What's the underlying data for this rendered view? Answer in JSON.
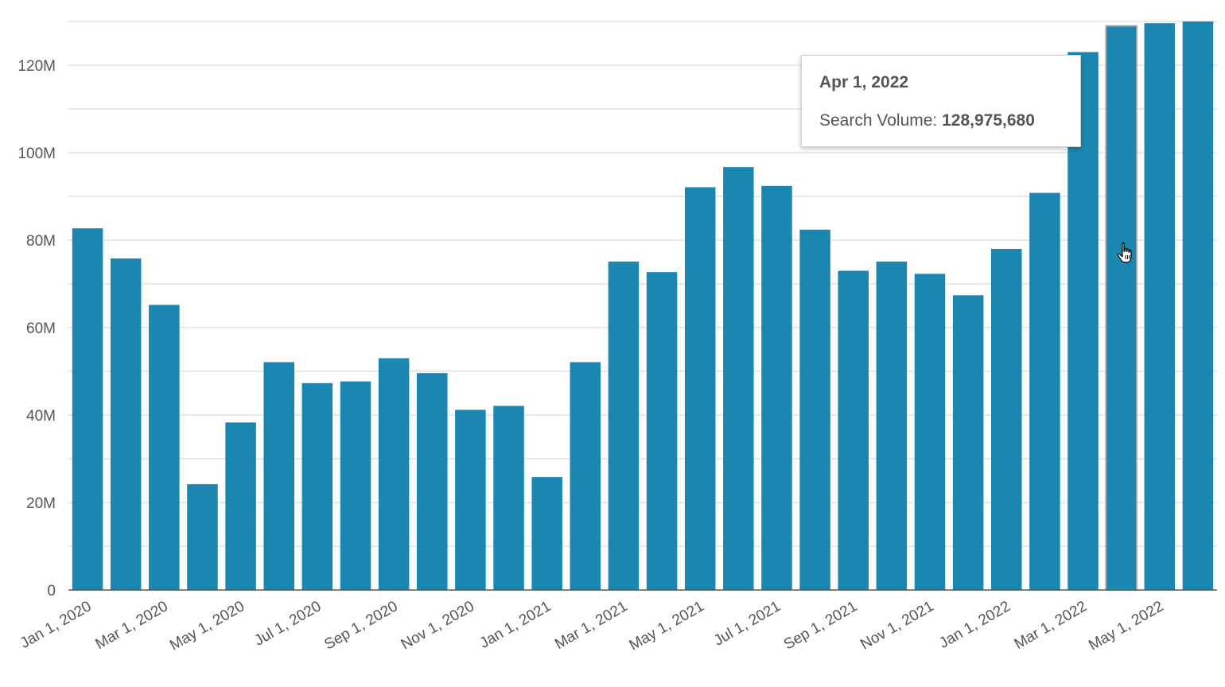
{
  "chart_data": {
    "type": "bar",
    "categories": [
      "Jan 1, 2020",
      "Feb 1, 2020",
      "Mar 1, 2020",
      "Apr 1, 2020",
      "May 1, 2020",
      "Jun 1, 2020",
      "Jul 1, 2020",
      "Aug 1, 2020",
      "Sep 1, 2020",
      "Oct 1, 2020",
      "Nov 1, 2020",
      "Dec 1, 2020",
      "Jan 1, 2021",
      "Feb 1, 2021",
      "Mar 1, 2021",
      "Apr 1, 2021",
      "May 1, 2021",
      "Jun 1, 2021",
      "Jul 1, 2021",
      "Aug 1, 2021",
      "Sep 1, 2021",
      "Oct 1, 2021",
      "Nov 1, 2021",
      "Dec 1, 2021",
      "Jan 1, 2022",
      "Feb 1, 2022",
      "Mar 1, 2022",
      "Apr 1, 2022",
      "May 1, 2022",
      "Jun 1, 2022"
    ],
    "series": [
      {
        "name": "Search Volume",
        "values": [
          82700000,
          75800000,
          65200000,
          24200000,
          38300000,
          52100000,
          47300000,
          47700000,
          53000000,
          49600000,
          41200000,
          42100000,
          25800000,
          52100000,
          75100000,
          72700000,
          92100000,
          96700000,
          92400000,
          82400000,
          73000000,
          75100000,
          72300000,
          67400000,
          78000000,
          90800000,
          123000000,
          128975680,
          129600000,
          130000000
        ]
      }
    ],
    "x_tick_labels": [
      "Jan 1, 2020",
      "Mar 1, 2020",
      "May 1, 2020",
      "Jul 1, 2020",
      "Sep 1, 2020",
      "Nov 1, 2020",
      "Jan 1, 2021",
      "Mar 1, 2021",
      "May 1, 2021",
      "Jul 1, 2021",
      "Sep 1, 2021",
      "Nov 1, 2021",
      "Jan 1, 2022",
      "Mar 1, 2022",
      "May 1, 2022"
    ],
    "y_ticks": [
      0,
      20000000,
      40000000,
      60000000,
      80000000,
      100000000,
      120000000
    ],
    "y_tick_labels": [
      "0",
      "20M",
      "40M",
      "60M",
      "80M",
      "100M",
      "120M"
    ],
    "ylim": [
      0,
      130000000
    ],
    "title": "",
    "xlabel": "",
    "ylabel": "",
    "grid": true,
    "legend": "none",
    "highlighted_category": "Apr 1, 2022",
    "bar_color": "#1b87b0",
    "grid_color": "#dedede",
    "axis_color": "#555555"
  },
  "tooltip": {
    "title": "Apr 1, 2022",
    "label": "Search Volume: ",
    "value": "128,975,680"
  }
}
